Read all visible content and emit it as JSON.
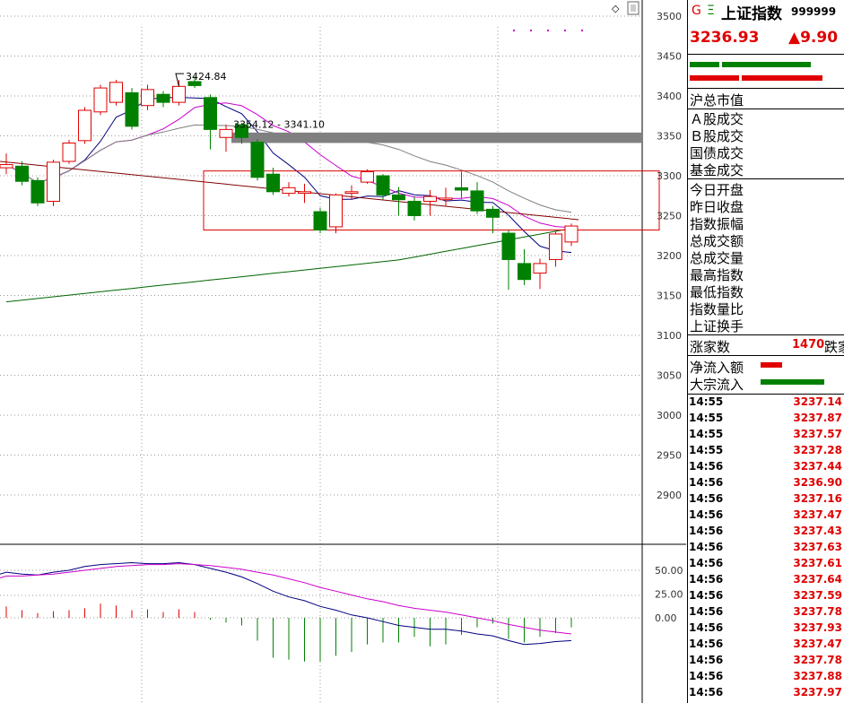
{
  "header": {
    "g_mark": "G",
    "e_mark": "Ξ",
    "index_name": "上证指数",
    "index_code": "999999",
    "price": "3236.93",
    "change": "▲9.90"
  },
  "panel": {
    "market_cap_label": "沪总市值",
    "turnover_labels": [
      "Ａ股成交",
      "Ｂ股成交",
      "国债成交",
      "基金成交"
    ],
    "stats_labels": [
      "今日开盘",
      "昨日收盘",
      "指数振幅",
      "总成交额",
      "总成交量",
      "最高指数",
      "最低指数",
      "指数量比",
      "上证换手"
    ],
    "advancers_label": "涨家数",
    "advancers_value": "1470",
    "decliners_label": "跌家",
    "net_inflow_label": "净流入额",
    "block_inflow_label": "大宗流入"
  },
  "ticks": [
    {
      "time": "14:55",
      "value": "3237.14"
    },
    {
      "time": "14:55",
      "value": "3237.87"
    },
    {
      "time": "14:55",
      "value": "3237.57"
    },
    {
      "time": "14:55",
      "value": "3237.28"
    },
    {
      "time": "14:56",
      "value": "3237.44"
    },
    {
      "time": "14:56",
      "value": "3236.90"
    },
    {
      "time": "14:56",
      "value": "3237.16"
    },
    {
      "time": "14:56",
      "value": "3237.47"
    },
    {
      "time": "14:56",
      "value": "3237.43"
    },
    {
      "time": "14:56",
      "value": "3237.63"
    },
    {
      "time": "14:56",
      "value": "3237.61"
    },
    {
      "time": "14:56",
      "value": "3237.64"
    },
    {
      "time": "14:56",
      "value": "3237.59"
    },
    {
      "time": "14:56",
      "value": "3237.78"
    },
    {
      "time": "14:56",
      "value": "3237.93"
    },
    {
      "time": "14:56",
      "value": "3237.47"
    },
    {
      "time": "14:56",
      "value": "3237.78"
    },
    {
      "time": "14:56",
      "value": "3237.88"
    },
    {
      "time": "14:56",
      "value": "3237.97"
    }
  ],
  "colors": {
    "up": "#e00000",
    "down": "#008000",
    "ma5": "#000080",
    "ma10": "#cc00cc",
    "ma20": "#808080",
    "ma60": "#006400",
    "trend": "#800000",
    "zone": "#e00000",
    "band": "#808080"
  },
  "chart_data": [
    {
      "type": "candlestick",
      "ylim": [
        2850,
        3520
      ],
      "yticks": [
        "3500",
        "3450",
        "3400",
        "3350",
        "3300",
        "3250",
        "3200",
        "3150",
        "3100",
        "3050",
        "3000",
        "2950",
        "2900"
      ],
      "annotations": [
        "3424.84",
        "3354.12 - 3341.10"
      ],
      "candles": [
        {
          "o": 3310,
          "c": 3314,
          "h": 3328,
          "l": 3302
        },
        {
          "o": 3312,
          "c": 3293,
          "h": 3318,
          "l": 3288
        },
        {
          "o": 3294,
          "c": 3266,
          "h": 3298,
          "l": 3262
        },
        {
          "o": 3268,
          "c": 3317,
          "h": 3320,
          "l": 3262
        },
        {
          "o": 3318,
          "c": 3341,
          "h": 3345,
          "l": 3315
        },
        {
          "o": 3344,
          "c": 3382,
          "h": 3386,
          "l": 3340
        },
        {
          "o": 3380,
          "c": 3410,
          "h": 3414,
          "l": 3376
        },
        {
          "o": 3392,
          "c": 3417,
          "h": 3420,
          "l": 3388
        },
        {
          "o": 3404,
          "c": 3362,
          "h": 3410,
          "l": 3358
        },
        {
          "o": 3388,
          "c": 3408,
          "h": 3414,
          "l": 3382
        },
        {
          "o": 3402,
          "c": 3392,
          "h": 3406,
          "l": 3386
        },
        {
          "o": 3392,
          "c": 3412,
          "h": 3420,
          "l": 3388
        },
        {
          "o": 3418,
          "c": 3413,
          "h": 3425,
          "l": 3410
        },
        {
          "o": 3398,
          "c": 3358,
          "h": 3402,
          "l": 3333
        },
        {
          "o": 3348,
          "c": 3358,
          "h": 3364,
          "l": 3330
        },
        {
          "o": 3364,
          "c": 3348,
          "h": 3366,
          "l": 3340
        },
        {
          "o": 3342,
          "c": 3298,
          "h": 3346,
          "l": 3294
        },
        {
          "o": 3302,
          "c": 3280,
          "h": 3310,
          "l": 3276
        },
        {
          "o": 3278,
          "c": 3285,
          "h": 3292,
          "l": 3274
        },
        {
          "o": 3278,
          "c": 3280,
          "h": 3290,
          "l": 3266
        },
        {
          "o": 3255,
          "c": 3232,
          "h": 3260,
          "l": 3228
        },
        {
          "o": 3236,
          "c": 3276,
          "h": 3278,
          "l": 3228
        },
        {
          "o": 3278,
          "c": 3280,
          "h": 3288,
          "l": 3270
        },
        {
          "o": 3292,
          "c": 3305,
          "h": 3308,
          "l": 3290
        },
        {
          "o": 3300,
          "c": 3276,
          "h": 3302,
          "l": 3270
        },
        {
          "o": 3276,
          "c": 3270,
          "h": 3286,
          "l": 3250
        },
        {
          "o": 3268,
          "c": 3250,
          "h": 3274,
          "l": 3244
        },
        {
          "o": 3268,
          "c": 3274,
          "h": 3282,
          "l": 3250
        },
        {
          "o": 3270,
          "c": 3272,
          "h": 3285,
          "l": 3262
        },
        {
          "o": 3285,
          "c": 3282,
          "h": 3305,
          "l": 3272
        },
        {
          "o": 3281,
          "c": 3256,
          "h": 3292,
          "l": 3252
        },
        {
          "o": 3258,
          "c": 3248,
          "h": 3262,
          "l": 3228
        },
        {
          "o": 3228,
          "c": 3195,
          "h": 3232,
          "l": 3157
        },
        {
          "o": 3190,
          "c": 3170,
          "h": 3208,
          "l": 3163
        },
        {
          "o": 3178,
          "c": 3190,
          "h": 3196,
          "l": 3158
        },
        {
          "o": 3195,
          "c": 3227,
          "h": 3230,
          "l": 3186
        },
        {
          "o": 3217,
          "c": 3237,
          "h": 3240,
          "l": 3212
        }
      ]
    },
    {
      "type": "line",
      "yticks": [
        "50.00",
        "25.00",
        "0.00"
      ],
      "ylim": [
        -45,
        75
      ],
      "series": [
        {
          "values": [
            48,
            46,
            45,
            48,
            50,
            54,
            56,
            57,
            58,
            57,
            57,
            58,
            56,
            52,
            48,
            43,
            36,
            28,
            22,
            18,
            12,
            8,
            3,
            0,
            -4,
            -8,
            -10,
            -12,
            -12,
            -14,
            -17,
            -19,
            -24,
            -28,
            -27,
            -25,
            -24
          ]
        },
        {
          "values": [
            44,
            44,
            45,
            46,
            48,
            50,
            52,
            54,
            55,
            56,
            56,
            57,
            56,
            55,
            53,
            51,
            48,
            45,
            41,
            37,
            32,
            28,
            24,
            20,
            17,
            13,
            10,
            8,
            6,
            3,
            0,
            -3,
            -7,
            -10,
            -13,
            -15,
            -17
          ]
        }
      ],
      "bars": [
        12,
        8,
        5,
        7,
        8,
        10,
        15,
        13,
        8,
        9,
        6,
        9,
        6,
        -2,
        -5,
        -8,
        -24,
        -42,
        -44,
        -46,
        -46,
        -40,
        -36,
        -28,
        -26,
        -26,
        -20,
        -30,
        -28,
        -18,
        -10,
        -6,
        -22,
        -26,
        -20,
        -16,
        -10
      ]
    }
  ]
}
